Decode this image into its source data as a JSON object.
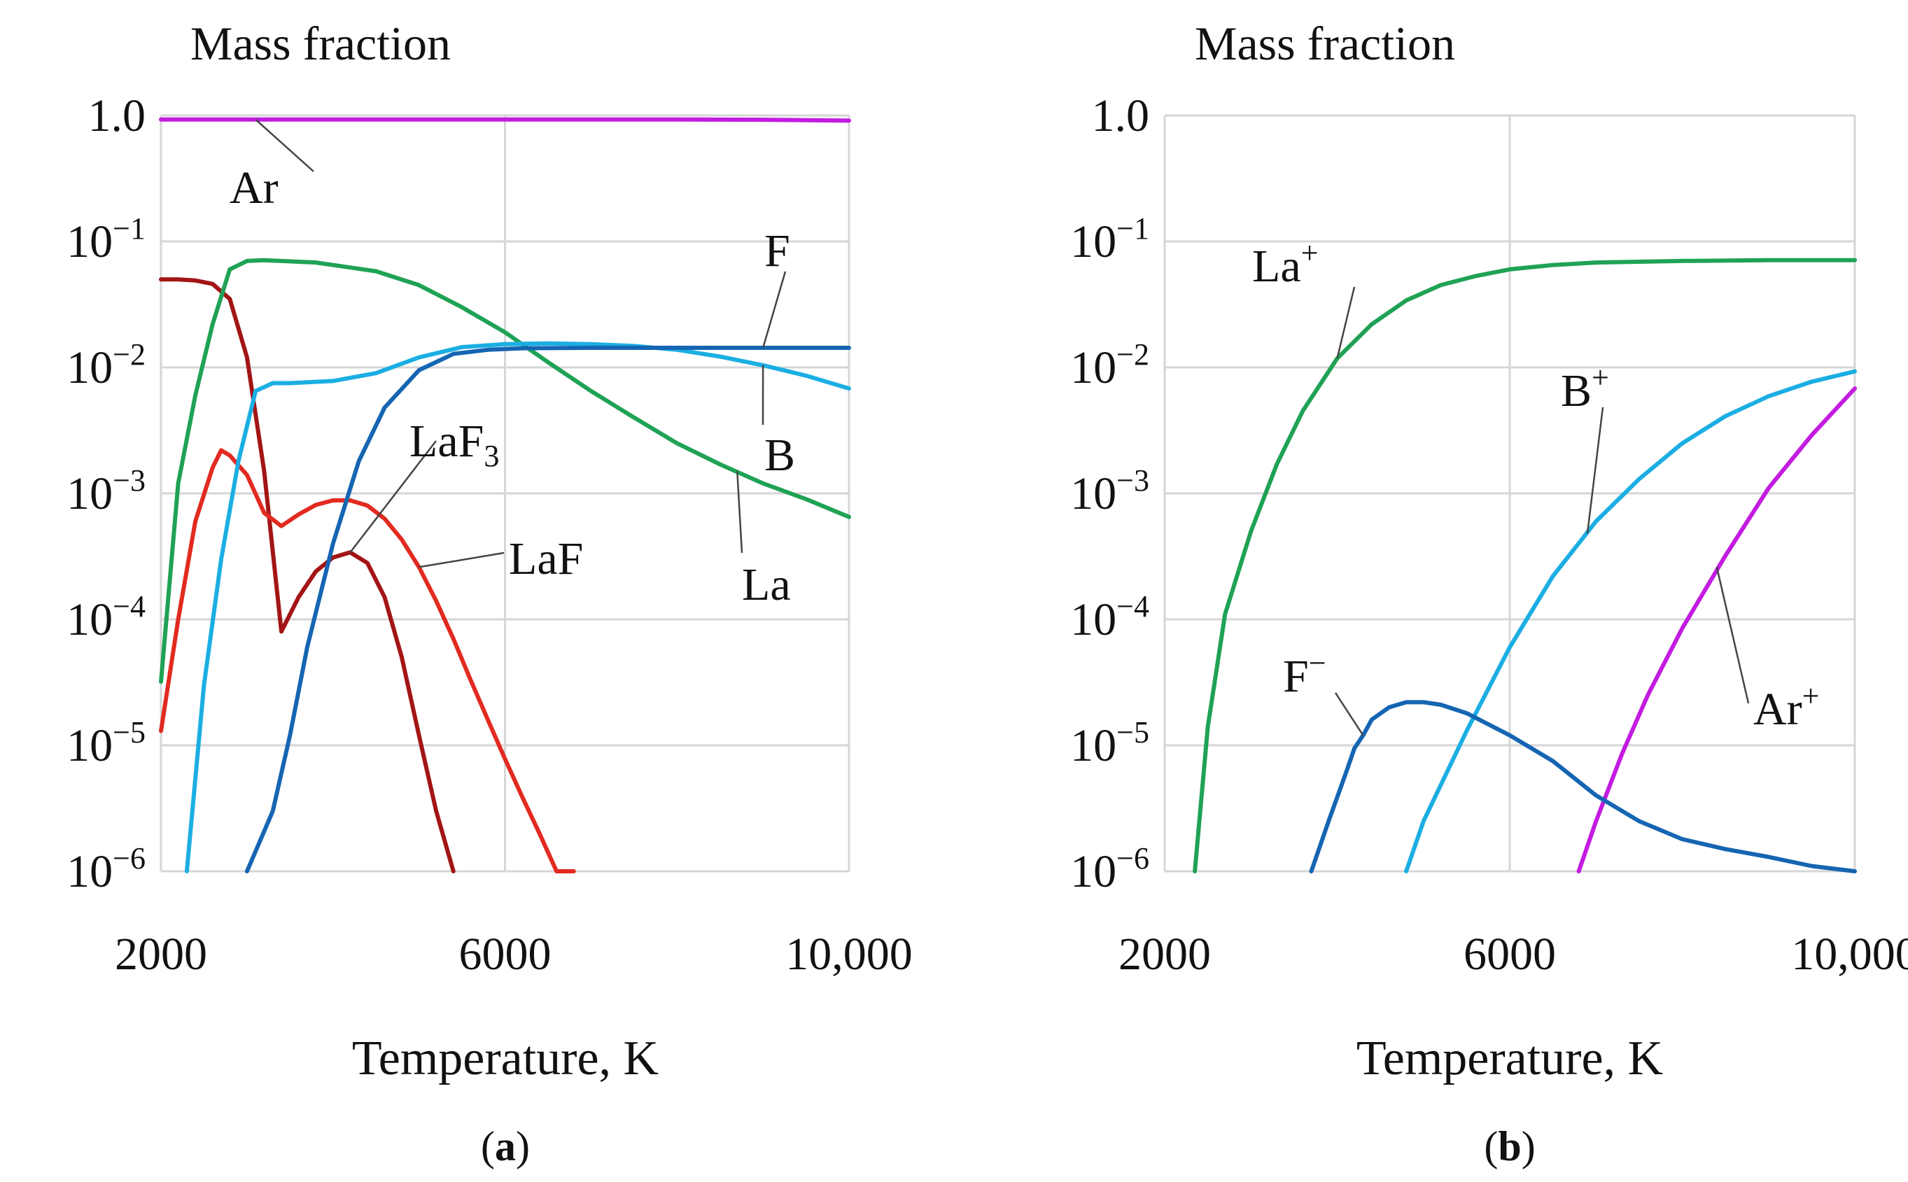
{
  "figure": {
    "panel_a_caption": {
      "open": "(",
      "letter": "a",
      "close": ")"
    },
    "panel_b_caption": {
      "open": "(",
      "letter": "b",
      "close": ")"
    }
  },
  "chart_data": [
    {
      "type": "line",
      "panel": "a",
      "title": "",
      "ylabel": "Mass fraction",
      "xlabel": "Temperature, K",
      "yscale": "log",
      "xlim": [
        2000,
        10000
      ],
      "ylim": [
        1e-06,
        1
      ],
      "x_ticks": [
        2000,
        6000,
        10000
      ],
      "x_tick_labels": [
        "2000",
        "6000",
        "10,000"
      ],
      "y_ticks": [
        1e-06,
        1e-05,
        0.0001,
        0.001,
        0.01,
        0.1,
        1
      ],
      "y_tick_labels": [
        {
          "base": "10",
          "sup": "−6"
        },
        {
          "base": "10",
          "sup": "−5"
        },
        {
          "base": "10",
          "sup": "−4"
        },
        {
          "base": "10",
          "sup": "−3"
        },
        {
          "base": "10",
          "sup": "−2"
        },
        {
          "base": "10",
          "sup": "−1"
        },
        {
          "base": "1.0",
          "sup": ""
        }
      ],
      "grid": true,
      "series": [
        {
          "name": "Ar",
          "label": {
            "base": "Ar",
            "sub": "",
            "sup": ""
          },
          "color": "#C31BE0",
          "x": [
            2000,
            4000,
            6000,
            8000,
            9000,
            10000
          ],
          "y": [
            0.93,
            0.93,
            0.93,
            0.93,
            0.925,
            0.91
          ]
        },
        {
          "name": "LaF3",
          "label": {
            "base": "LaF",
            "sub": "3",
            "sup": ""
          },
          "color": "#A31515",
          "x": [
            2000,
            2200,
            2400,
            2600,
            2800,
            3000,
            3200,
            3400,
            3600,
            3800,
            4000,
            4200,
            4400,
            4600,
            4800,
            5000,
            5200,
            5400
          ],
          "y": [
            0.05,
            0.05,
            0.049,
            0.046,
            0.035,
            0.012,
            0.0015,
            8e-05,
            0.00015,
            0.00024,
            0.00031,
            0.00034,
            0.00028,
            0.00015,
            5e-05,
            1.2e-05,
            3e-06,
            8e-07
          ]
        },
        {
          "name": "LaF",
          "label": {
            "base": "LaF",
            "sub": "",
            "sup": ""
          },
          "color": "#E22A20",
          "x": [
            2000,
            2200,
            2400,
            2600,
            2700,
            2800,
            3000,
            3200,
            3400,
            3600,
            3800,
            4000,
            4200,
            4400,
            4600,
            4800,
            5000,
            5200,
            5400,
            5600,
            5800,
            6000,
            6200,
            6400,
            6600,
            6800
          ],
          "y": [
            1.3e-05,
            0.0001,
            0.0006,
            0.0016,
            0.0022,
            0.002,
            0.0014,
            0.0007,
            0.00055,
            0.00068,
            0.00081,
            0.00088,
            0.00088,
            0.0008,
            0.00063,
            0.00043,
            0.00026,
            0.00014,
            7e-05,
            3.3e-05,
            1.6e-05,
            7.8e-06,
            3.9e-06,
            2e-06,
            1e-06,
            6e-07
          ]
        },
        {
          "name": "La",
          "label": {
            "base": "La",
            "sub": "",
            "sup": ""
          },
          "color": "#1FA255",
          "x": [
            2000,
            2200,
            2400,
            2600,
            2800,
            3000,
            3200,
            3400,
            3600,
            3800,
            4000,
            4500,
            5000,
            5500,
            6000,
            6500,
            7000,
            7500,
            8000,
            8500,
            9000,
            9500,
            10000
          ],
          "y": [
            3.2e-05,
            0.0012,
            0.006,
            0.022,
            0.06,
            0.07,
            0.071,
            0.07,
            0.069,
            0.068,
            0.065,
            0.058,
            0.045,
            0.03,
            0.019,
            0.011,
            0.0065,
            0.004,
            0.0025,
            0.0017,
            0.0012,
            0.0009,
            0.00065
          ]
        },
        {
          "name": "B",
          "label": {
            "base": "B",
            "sub": "",
            "sup": ""
          },
          "color": "#1BAEE3",
          "x": [
            2300,
            2500,
            2700,
            2900,
            3100,
            3300,
            3500,
            4000,
            4500,
            5000,
            5500,
            6000,
            6500,
            7000,
            7500,
            8000,
            8500,
            9000,
            9500,
            10000
          ],
          "y": [
            8e-07,
            3e-05,
            0.0003,
            0.0018,
            0.0065,
            0.0075,
            0.0075,
            0.0078,
            0.009,
            0.012,
            0.0145,
            0.0153,
            0.0155,
            0.0153,
            0.0148,
            0.0138,
            0.0122,
            0.0104,
            0.0086,
            0.0068
          ]
        },
        {
          "name": "F",
          "label": {
            "base": "F",
            "sub": "",
            "sup": ""
          },
          "color": "#1565B2",
          "x": [
            3000,
            3300,
            3500,
            3700,
            4000,
            4300,
            4600,
            5000,
            5400,
            5800,
            6200,
            7000,
            8000,
            9000,
            10000
          ],
          "y": [
            8e-07,
            3e-06,
            1.2e-05,
            6e-05,
            0.0004,
            0.0018,
            0.0048,
            0.0095,
            0.0128,
            0.0138,
            0.0142,
            0.0143,
            0.0143,
            0.0143,
            0.0143
          ]
        }
      ]
    },
    {
      "type": "line",
      "panel": "b",
      "title": "",
      "ylabel": "Mass fraction",
      "xlabel": "Temperature, K",
      "yscale": "log",
      "xlim": [
        2000,
        10000
      ],
      "ylim": [
        1e-06,
        1
      ],
      "x_ticks": [
        2000,
        6000,
        10000
      ],
      "x_tick_labels": [
        "2000",
        "6000",
        "10,000"
      ],
      "y_ticks": [
        1e-06,
        1e-05,
        0.0001,
        0.001,
        0.01,
        0.1,
        1
      ],
      "y_tick_labels": [
        {
          "base": "10",
          "sup": "−6"
        },
        {
          "base": "10",
          "sup": "−5"
        },
        {
          "base": "10",
          "sup": "−4"
        },
        {
          "base": "10",
          "sup": "−3"
        },
        {
          "base": "10",
          "sup": "−2"
        },
        {
          "base": "10",
          "sup": "−1"
        },
        {
          "base": "1.0",
          "sup": ""
        }
      ],
      "grid": true,
      "series": [
        {
          "name": "La+",
          "label": {
            "base": "La",
            "sub": "",
            "sup": "+"
          },
          "color": "#1FA255",
          "x": [
            2350,
            2500,
            2700,
            3000,
            3300,
            3600,
            4000,
            4400,
            4800,
            5200,
            5600,
            6000,
            6500,
            7000,
            8000,
            9000,
            10000
          ],
          "y": [
            1e-06,
            1.4e-05,
            0.00011,
            0.0005,
            0.0017,
            0.0045,
            0.0118,
            0.022,
            0.034,
            0.045,
            0.053,
            0.06,
            0.065,
            0.068,
            0.07,
            0.071,
            0.071
          ]
        },
        {
          "name": "B+",
          "label": {
            "base": "B",
            "sub": "",
            "sup": "+"
          },
          "color": "#1BAEE3",
          "x": [
            4800,
            5000,
            5500,
            6000,
            6500,
            7000,
            7500,
            8000,
            8500,
            9000,
            9500,
            10000
          ],
          "y": [
            1e-06,
            2.5e-06,
            1.3e-05,
            6e-05,
            0.00022,
            0.0006,
            0.0013,
            0.0025,
            0.0041,
            0.0059,
            0.0077,
            0.0093
          ]
        },
        {
          "name": "Ar+",
          "label": {
            "base": "Ar",
            "sub": "",
            "sup": "+"
          },
          "color": "#C31BE0",
          "x": [
            6800,
            7000,
            7300,
            7600,
            8000,
            8500,
            9000,
            9500,
            10000
          ],
          "y": [
            1e-06,
            2.5e-06,
            8.5e-06,
            2.5e-05,
            8.5e-05,
            0.00032,
            0.0011,
            0.0029,
            0.0068
          ]
        },
        {
          "name": "F-",
          "label": {
            "base": "F",
            "sub": "",
            "sup": "−"
          },
          "color": "#1565B2",
          "x": [
            3700,
            3900,
            4100,
            4200,
            4300,
            4400,
            4600,
            4800,
            5000,
            5200,
            5500,
            6000,
            6500,
            7000,
            7500,
            8000,
            8500,
            9000,
            9500,
            10000
          ],
          "y": [
            1e-06,
            2.5e-06,
            6e-06,
            9.5e-06,
            1.2e-05,
            1.6e-05,
            2e-05,
            2.2e-05,
            2.2e-05,
            2.1e-05,
            1.8e-05,
            1.2e-05,
            7.5e-06,
            4e-06,
            2.5e-06,
            1.8e-06,
            1.5e-06,
            1.3e-06,
            1.1e-06,
            1e-06
          ]
        }
      ]
    }
  ]
}
